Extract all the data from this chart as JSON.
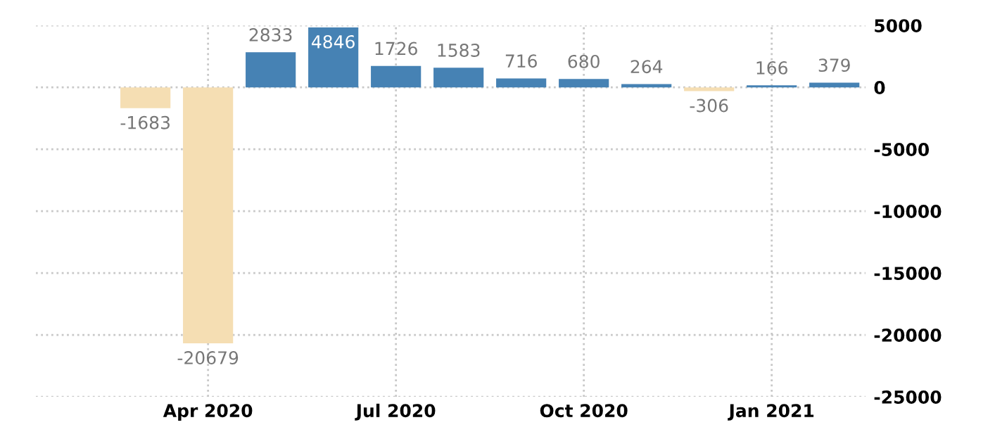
{
  "chart_data": {
    "type": "bar",
    "categories": [
      null,
      "Apr 2020",
      null,
      null,
      "Jul 2020",
      null,
      null,
      "Oct 2020",
      null,
      null,
      "Jan 2021",
      null
    ],
    "values": [
      -1683,
      -20679,
      2833,
      4846,
      1726,
      1583,
      716,
      680,
      264,
      -306,
      166,
      379
    ],
    "colors": [
      "#f5deb3",
      "#f5deb3",
      "#4682b4",
      "#4682b4",
      "#4682b4",
      "#4682b4",
      "#4682b4",
      "#4682b4",
      "#4682b4",
      "#f5deb3",
      "#4682b4",
      "#4682b4"
    ],
    "ylim": [
      -25000,
      5000
    ],
    "yticks": [
      -25000,
      -20000,
      -15000,
      -10000,
      -5000,
      0,
      5000
    ],
    "grid": true,
    "data_labels": true
  }
}
